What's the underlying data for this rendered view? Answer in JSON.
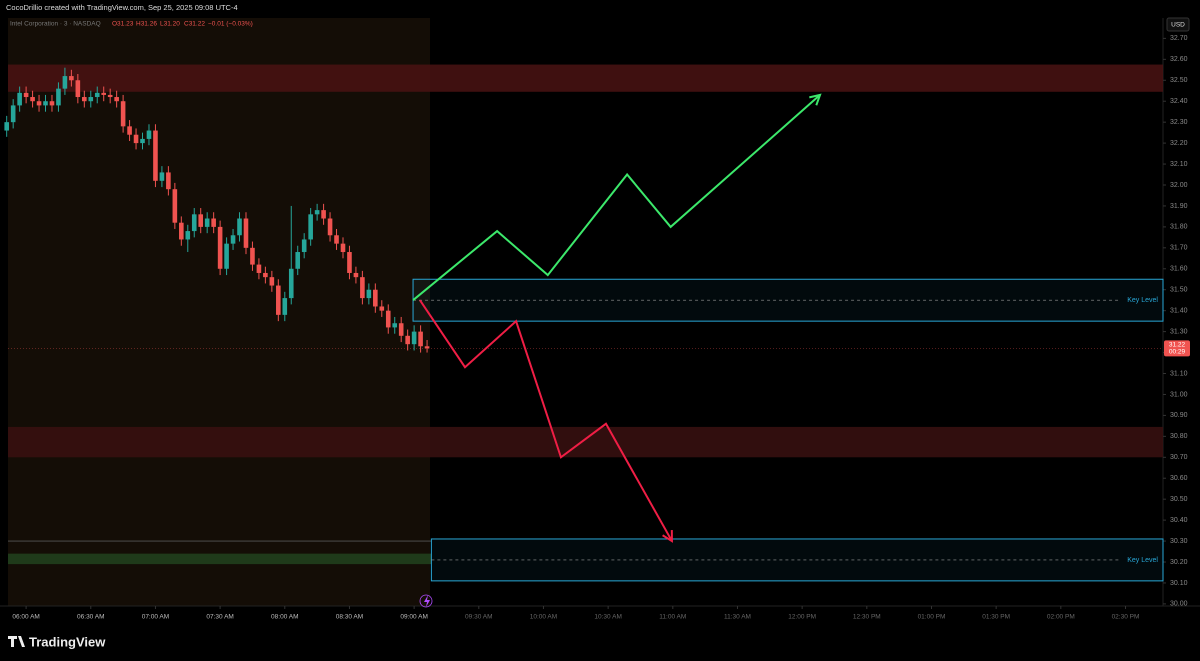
{
  "header": {
    "credit": "CocoDrillio created with TradingView.com, Sep 25, 2025 09:08 UTC-4",
    "symbol": "Intel Corporation · 3 · NASDAQ",
    "ohlc": [
      "O31.23",
      "H31.26",
      "L31.20",
      "C31.22"
    ],
    "change": "−0.01 (−0.03%)",
    "currency": "USD",
    "brand": "TradingView"
  },
  "chart_data": {
    "type": "candlestick",
    "x": [
      351,
      354,
      357,
      360,
      363,
      366,
      369,
      372,
      375,
      378,
      381,
      384,
      387,
      390,
      393,
      396,
      399,
      402,
      405,
      408,
      411,
      414,
      417,
      420,
      423,
      426,
      429,
      432,
      435,
      438,
      441,
      444,
      447,
      450,
      453,
      456,
      459,
      462,
      465,
      468,
      471,
      474,
      477,
      480,
      483,
      486,
      489,
      492,
      495,
      498,
      501,
      504,
      507,
      510,
      513,
      516,
      519,
      522,
      525,
      528,
      531,
      534,
      537,
      540,
      543,
      546
    ],
    "open": [
      32.26,
      32.3,
      32.38,
      32.44,
      32.42,
      32.4,
      32.38,
      32.4,
      32.38,
      32.46,
      32.52,
      32.5,
      32.42,
      32.4,
      32.42,
      32.44,
      32.43,
      32.42,
      32.4,
      32.28,
      32.24,
      32.2,
      32.22,
      32.26,
      32.02,
      32.06,
      31.98,
      31.82,
      31.74,
      31.78,
      31.86,
      31.8,
      31.84,
      31.8,
      31.6,
      31.72,
      31.76,
      31.84,
      31.7,
      31.62,
      31.58,
      31.56,
      31.52,
      31.38,
      31.46,
      31.6,
      31.68,
      31.74,
      31.86,
      31.88,
      31.84,
      31.76,
      31.72,
      31.68,
      31.58,
      31.56,
      31.46,
      31.5,
      31.42,
      31.4,
      31.32,
      31.34,
      31.28,
      31.24,
      31.3,
      31.23
    ],
    "high": [
      32.33,
      32.41,
      32.47,
      32.47,
      32.45,
      32.43,
      32.43,
      32.43,
      32.49,
      32.56,
      32.55,
      32.53,
      32.45,
      32.45,
      32.47,
      32.47,
      32.46,
      32.45,
      32.43,
      32.31,
      32.27,
      32.25,
      32.29,
      32.29,
      32.09,
      32.09,
      32.01,
      31.85,
      31.81,
      31.89,
      31.89,
      31.87,
      31.87,
      31.83,
      31.75,
      31.79,
      31.87,
      31.87,
      31.73,
      31.65,
      31.61,
      31.59,
      31.55,
      31.49,
      31.9,
      31.71,
      31.77,
      31.89,
      31.91,
      31.91,
      31.87,
      31.79,
      31.75,
      31.71,
      31.61,
      31.59,
      31.53,
      31.53,
      31.45,
      31.43,
      31.37,
      31.37,
      31.31,
      31.33,
      31.33,
      31.26
    ],
    "low": [
      32.23,
      32.27,
      32.35,
      32.39,
      32.37,
      32.35,
      32.35,
      32.35,
      32.35,
      32.43,
      32.47,
      32.39,
      32.37,
      32.37,
      32.39,
      32.4,
      32.39,
      32.37,
      32.25,
      32.21,
      32.17,
      32.17,
      32.19,
      31.99,
      31.99,
      31.95,
      31.79,
      31.71,
      31.68,
      31.75,
      31.77,
      31.77,
      31.77,
      31.57,
      31.57,
      31.69,
      31.73,
      31.67,
      31.59,
      31.55,
      31.53,
      31.49,
      31.35,
      31.35,
      31.43,
      31.57,
      31.65,
      31.71,
      31.83,
      31.81,
      31.73,
      31.69,
      31.65,
      31.55,
      31.53,
      31.43,
      31.43,
      31.39,
      31.37,
      31.29,
      31.29,
      31.25,
      31.21,
      31.21,
      31.2,
      31.2
    ],
    "close": [
      32.3,
      32.38,
      32.44,
      32.42,
      32.4,
      32.38,
      32.4,
      32.38,
      32.46,
      32.52,
      32.5,
      32.42,
      32.4,
      32.42,
      32.44,
      32.43,
      32.42,
      32.4,
      32.28,
      32.24,
      32.2,
      32.22,
      32.26,
      32.02,
      32.06,
      31.98,
      31.82,
      31.74,
      31.78,
      31.86,
      31.8,
      31.84,
      31.8,
      31.6,
      31.72,
      31.76,
      31.84,
      31.7,
      31.62,
      31.58,
      31.56,
      31.52,
      31.38,
      31.46,
      31.6,
      31.68,
      31.74,
      31.86,
      31.88,
      31.84,
      31.76,
      31.72,
      31.68,
      31.58,
      31.56,
      31.46,
      31.5,
      31.42,
      31.4,
      31.32,
      31.34,
      31.28,
      31.24,
      31.3,
      31.23,
      31.22
    ],
    "up_color": "#26a69a",
    "down_color": "#f05350",
    "xlim": [
      351.6,
      887.4
    ],
    "ylim": [
      29.99,
      32.74
    ],
    "xticks": [
      {
        "value": 360,
        "label": "06:00 AM"
      },
      {
        "value": 390,
        "label": "06:30 AM"
      },
      {
        "value": 420,
        "label": "07:00 AM"
      },
      {
        "value": 450,
        "label": "07:30 AM"
      },
      {
        "value": 480,
        "label": "08:00 AM"
      },
      {
        "value": 510,
        "label": "08:30 AM"
      },
      {
        "value": 540,
        "label": "09:00 AM"
      },
      {
        "value": 570,
        "label": "09:30 AM"
      },
      {
        "value": 600,
        "label": "10:00 AM"
      },
      {
        "value": 630,
        "label": "10:30 AM"
      },
      {
        "value": 660,
        "label": "11:00 AM"
      },
      {
        "value": 690,
        "label": "11:30 AM"
      },
      {
        "value": 720,
        "label": "12:00 PM"
      },
      {
        "value": 750,
        "label": "12:30 PM"
      },
      {
        "value": 780,
        "label": "01:00 PM"
      },
      {
        "value": 810,
        "label": "01:30 PM"
      },
      {
        "value": 840,
        "label": "02:00 PM"
      },
      {
        "value": 870,
        "label": "02:30 PM"
      }
    ],
    "yticks": [
      {
        "value": 30,
        "label": "30.00"
      },
      {
        "value": 30.1,
        "label": "30.10"
      },
      {
        "value": 30.2,
        "label": "30.20"
      },
      {
        "value": 30.3,
        "label": "30.30"
      },
      {
        "value": 30.4,
        "label": "30.40"
      },
      {
        "value": 30.5,
        "label": "30.50"
      },
      {
        "value": 30.6,
        "label": "30.60"
      },
      {
        "value": 30.7,
        "label": "30.70"
      },
      {
        "value": 30.8,
        "label": "30.80"
      },
      {
        "value": 30.9,
        "label": "30.90"
      },
      {
        "value": 31,
        "label": "31.00"
      },
      {
        "value": 31.1,
        "label": "31.10"
      },
      {
        "value": 31.2,
        "label": "31.20"
      },
      {
        "value": 31.3,
        "label": "31.30"
      },
      {
        "value": 31.4,
        "label": "31.40"
      },
      {
        "value": 31.5,
        "label": "31.50"
      },
      {
        "value": 31.6,
        "label": "31.60"
      },
      {
        "value": 31.7,
        "label": "31.70"
      },
      {
        "value": 31.8,
        "label": "31.80"
      },
      {
        "value": 31.9,
        "label": "31.90"
      },
      {
        "value": 32,
        "label": "32.00"
      },
      {
        "value": 32.1,
        "label": "32.10"
      },
      {
        "value": 32.2,
        "label": "32.20"
      },
      {
        "value": 32.3,
        "label": "32.30"
      },
      {
        "value": 32.4,
        "label": "32.40"
      },
      {
        "value": 32.5,
        "label": "32.50"
      },
      {
        "value": 32.6,
        "label": "32.60"
      },
      {
        "value": 32.7,
        "label": "32.70"
      }
    ],
    "last_price": {
      "value": 31.22,
      "countdown": "00:29",
      "color": "#f05350"
    },
    "zones": [
      {
        "from": 32.445,
        "to": 32.575,
        "color": "#4a1313"
      },
      {
        "from": 30.7,
        "to": 30.845,
        "color": "#3a1010"
      }
    ],
    "key_levels": [
      {
        "label": "Key Level",
        "value": 31.45,
        "from": 31.35,
        "to": 31.55,
        "start": 539.5,
        "color": "#29a7d6"
      },
      {
        "label": "Key Level",
        "value": 30.21,
        "from": 30.11,
        "to": 30.31,
        "start": 548,
        "color": "#29a7d6"
      }
    ],
    "support_band": {
      "from": 30.19,
      "to": 30.24,
      "line": 30.3,
      "color": "#1f3a1a"
    },
    "paths": [
      {
        "x": [
          539.5,
          578.5,
          602,
          638.8,
          659,
          728.3
        ],
        "y": [
          31.45,
          31.78,
          31.57,
          32.05,
          31.8,
          32.43
        ],
        "color": "#3ce86b"
      },
      {
        "x": [
          542.7,
          563.6,
          587.3,
          608.1,
          629,
          659.6
        ],
        "y": [
          31.45,
          31.13,
          31.35,
          30.7,
          30.86,
          30.3
        ],
        "color": "#ef1e45"
      }
    ]
  }
}
